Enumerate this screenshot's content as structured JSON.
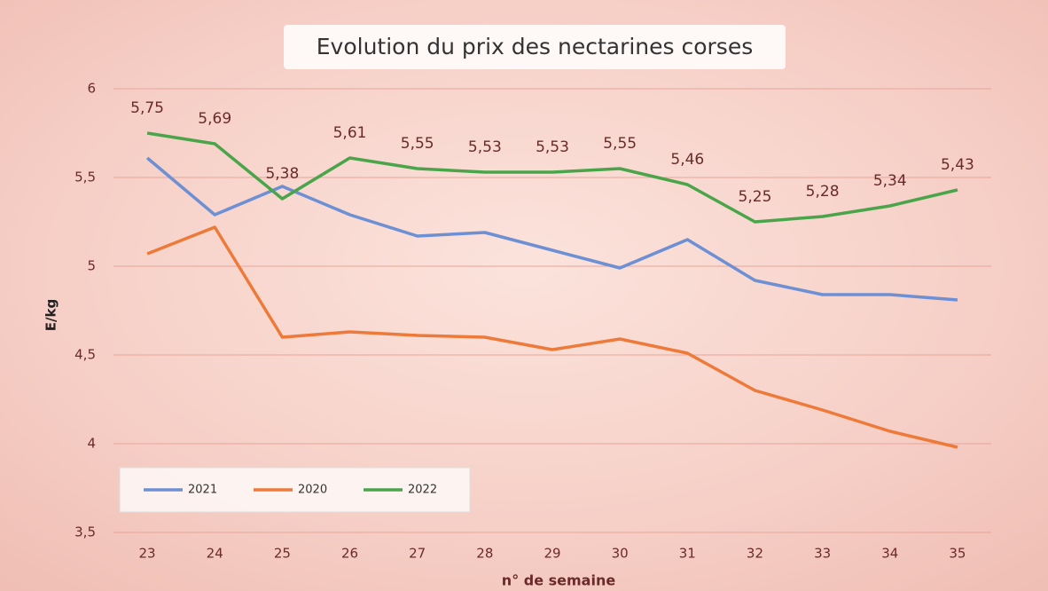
{
  "chart_data": {
    "type": "line",
    "title": "Evolution du prix des nectarines corses",
    "x_label": "n° de semaine",
    "y_label": "E/kg",
    "categories": [
      "23",
      "24",
      "25",
      "26",
      "27",
      "28",
      "29",
      "30",
      "31",
      "32",
      "33",
      "34",
      "35"
    ],
    "series": [
      {
        "name": "2021",
        "color": "#6d8fd3",
        "values": [
          5.61,
          5.29,
          5.45,
          5.29,
          5.17,
          5.19,
          5.09,
          4.99,
          5.15,
          4.92,
          4.84,
          4.84,
          4.81
        ]
      },
      {
        "name": "2020",
        "color": "#ee7a3a",
        "values": [
          5.07,
          5.22,
          4.6,
          4.63,
          4.61,
          4.6,
          4.53,
          4.59,
          4.51,
          4.3,
          4.19,
          4.07,
          3.98
        ]
      },
      {
        "name": "2022",
        "color": "#4aa54a",
        "values": [
          5.75,
          5.69,
          5.38,
          5.61,
          5.55,
          5.53,
          5.53,
          5.55,
          5.46,
          5.25,
          5.28,
          5.34,
          5.43
        ],
        "value_labels": [
          "5,75",
          "5,69",
          "5,38",
          "5,61",
          "5,55",
          "5,53",
          "5,53",
          "5,55",
          "5,46",
          "5,25",
          "5,28",
          "5,34",
          "5,43"
        ]
      }
    ],
    "ylim": [
      3.5,
      6
    ],
    "yticks": [
      {
        "value": 3.5,
        "label": "3,5"
      },
      4,
      {
        "value": 4.5,
        "label": "4,5"
      },
      5,
      {
        "value": 5.5,
        "label": "5,5"
      },
      6
    ],
    "grid": true,
    "legend": "lower left"
  }
}
